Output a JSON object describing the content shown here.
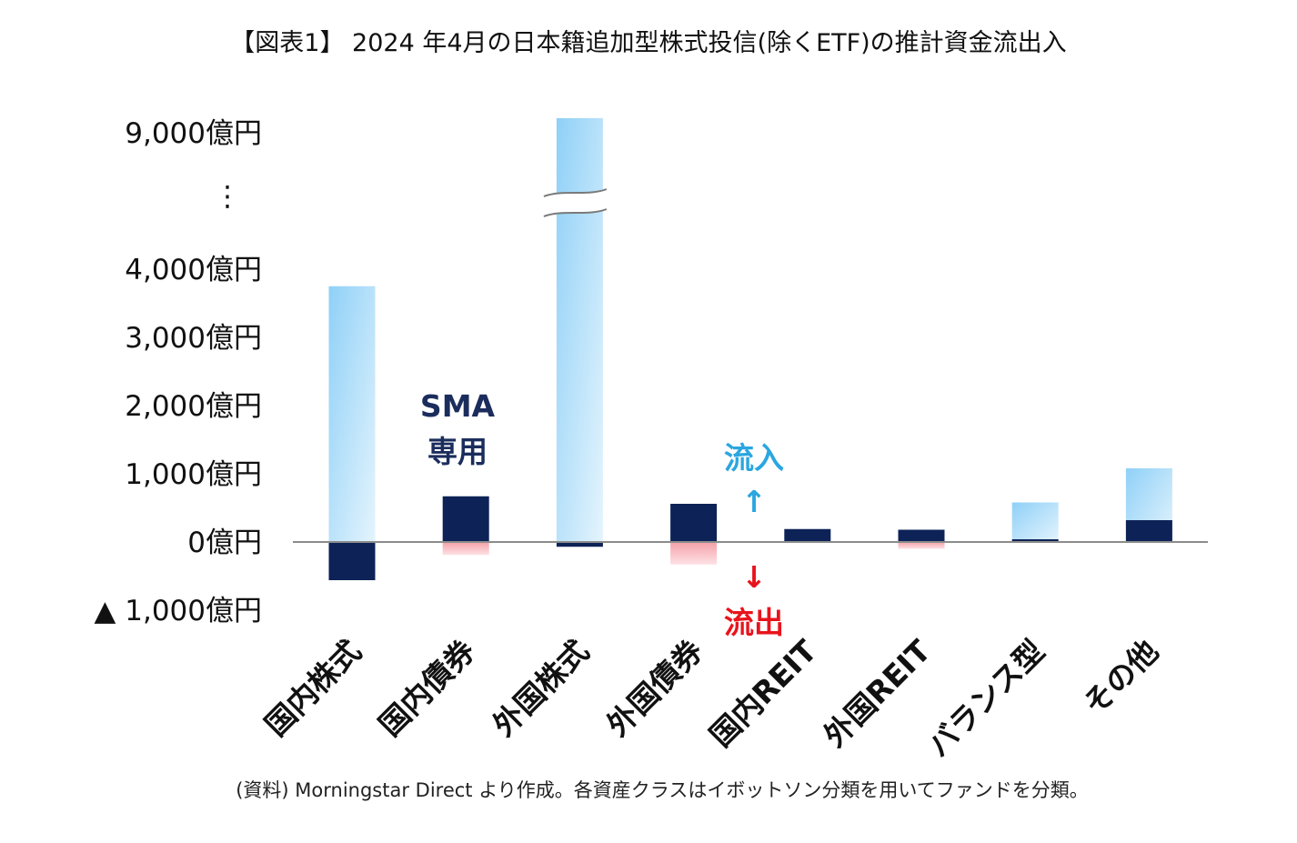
{
  "colors": {
    "inflow_light": "#8fd0f7",
    "inflow_fade": "#e4f4fd",
    "sma_dark": "#0d2357",
    "outflow_light": "#f4a0a8",
    "inflow_label": "#2aa6e0",
    "outflow_label": "#e8141c",
    "axis": "#8c8c8c"
  },
  "chart_data": {
    "type": "bar",
    "title": "【図表1】 2024 年4月の日本籍追加型株式投信(除くETF)の推計資金流出入",
    "categories": [
      "国内株式",
      "国内債券",
      "外国株式",
      "外国債券",
      "国内REIT",
      "外国REIT",
      "バランス型",
      "その他"
    ],
    "series": [
      {
        "name": "",
        "values": [
          3750,
          0,
          9500,
          0,
          0,
          0,
          580,
          1080
        ]
      },
      {
        "name": "SMA専用",
        "values": [
          -560,
          670,
          -70,
          560,
          190,
          180,
          40,
          320
        ]
      },
      {
        "name": "",
        "values": [
          0,
          -190,
          0,
          -330,
          0,
          -100,
          0,
          0
        ]
      }
    ],
    "axis_break": {
      "from": 4000,
      "to": 9000
    },
    "ylim": [
      -1000,
      9000
    ],
    "y_tick_labels": [
      "9,000億円",
      "⋮",
      "4,000億円",
      "3,000億円",
      "2,000億円",
      "1,000億円",
      "0億円",
      "▲ 1,000億円"
    ],
    "annotations": {
      "sma": [
        "SMA",
        "専用"
      ],
      "inflow": "流入",
      "inflow_arrow": "↑",
      "outflow_arrow": "↓",
      "outflow": "流出"
    },
    "legend": "none",
    "grid": false
  },
  "source": "(資料) Morningstar Direct より作成。各資産クラスはイボットソン分類を用いてファンドを分類。"
}
